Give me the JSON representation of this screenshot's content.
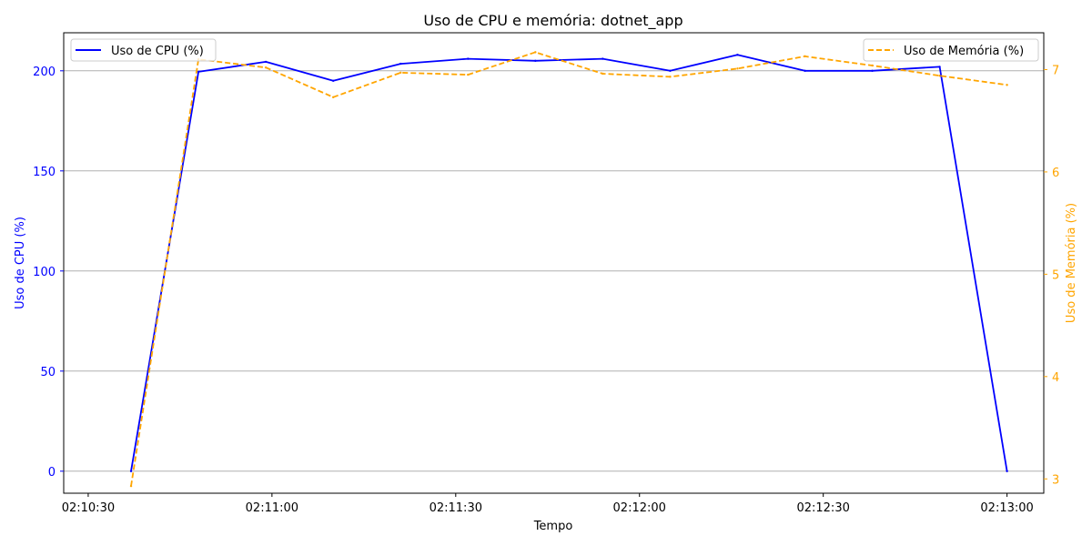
{
  "chart_data": {
    "type": "line",
    "title": "Uso de CPU e memória: dotnet_app",
    "xlabel": "Tempo",
    "ylabel_left": "Uso de CPU (%)",
    "ylabel_right": "Uso de Memória (%)",
    "x_ticks": [
      "02:10:30",
      "02:11:00",
      "02:11:30",
      "02:12:00",
      "02:12:30",
      "02:13:00"
    ],
    "x_tick_seconds": [
      30,
      60,
      90,
      120,
      150,
      180
    ],
    "xlim_seconds": [
      26,
      186
    ],
    "y_left_ticks": [
      0,
      50,
      100,
      150,
      200
    ],
    "ylim_left": [
      -11,
      219
    ],
    "y_right_ticks": [
      3,
      4,
      5,
      6,
      7
    ],
    "ylim_right": [
      2.86,
      7.36
    ],
    "grid": "horizontal (left axis)",
    "x": [
      "02:10:37",
      "02:10:48",
      "02:10:59",
      "02:11:10",
      "02:11:21",
      "02:11:32",
      "02:11:43",
      "02:11:54",
      "02:12:05",
      "02:12:16",
      "02:12:27",
      "02:12:38",
      "02:12:49",
      "02:13:00"
    ],
    "x_seconds": [
      37,
      48,
      59,
      70,
      81,
      92,
      103,
      114,
      125,
      136,
      147,
      158,
      169,
      180
    ],
    "series": [
      {
        "name": "Uso de CPU (%)",
        "axis": "left",
        "color": "#0000ff",
        "style": "solid",
        "values": [
          0,
          199.5,
          204.5,
          195,
          203.5,
          206,
          205,
          206,
          200,
          208,
          200,
          200,
          202,
          0
        ]
      },
      {
        "name": "Uso de Memória (%)",
        "axis": "right",
        "color": "#ffa500",
        "style": "dashed",
        "values": [
          2.93,
          7.1,
          7.02,
          6.73,
          6.97,
          6.95,
          7.17,
          6.96,
          6.93,
          7.01,
          7.13,
          7.04,
          6.94,
          6.85
        ]
      }
    ],
    "legend_left_position": "upper-left",
    "legend_right_position": "upper-right"
  },
  "colors": {
    "cpu": "#0000ff",
    "memory": "#ffa500",
    "grid": "#b0b0b0",
    "axis": "#000000"
  }
}
